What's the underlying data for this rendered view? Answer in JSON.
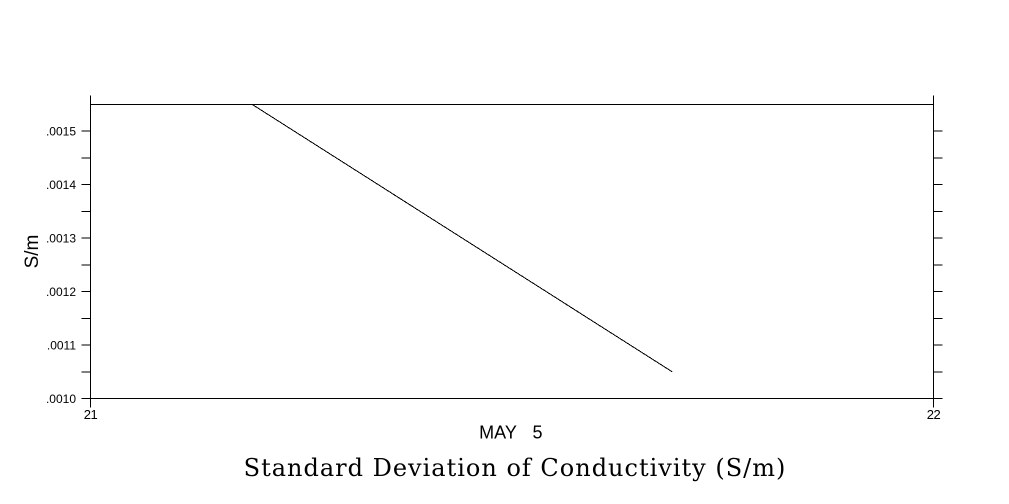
{
  "page": {
    "background": "#ffffff"
  },
  "chart_data": {
    "type": "line",
    "title": "Standard Deviation of Conductivity (S/m)",
    "xlabel": "MAY  5",
    "ylabel": "S/m",
    "xlim": [
      21,
      22
    ],
    "ylim": [
      0.001,
      0.00155
    ],
    "grid": "off",
    "frame": "box",
    "tick_direction": "out",
    "x_ticks": [
      {
        "value": 21,
        "label": "21"
      },
      {
        "value": 22,
        "label": "22"
      }
    ],
    "y_ticks": [
      {
        "value": 0.001,
        "label": ".0010"
      },
      {
        "value": 0.00105,
        "label": ""
      },
      {
        "value": 0.0011,
        "label": ".0011"
      },
      {
        "value": 0.00115,
        "label": ""
      },
      {
        "value": 0.0012,
        "label": ".0012"
      },
      {
        "value": 0.00125,
        "label": ""
      },
      {
        "value": 0.0013,
        "label": ".0013"
      },
      {
        "value": 0.00135,
        "label": ""
      },
      {
        "value": 0.0014,
        "label": ".0014"
      },
      {
        "value": 0.00145,
        "label": ""
      },
      {
        "value": 0.0015,
        "label": ".0015"
      }
    ],
    "series": [
      {
        "name": "standard-deviation-of-conductivity",
        "color": "#000000",
        "points": [
          [
            21.192,
            0.00155
          ],
          [
            21.69,
            0.00105
          ]
        ]
      }
    ],
    "colors": {
      "axis": "#000000",
      "text": "#000000",
      "background": "#ffffff"
    }
  }
}
